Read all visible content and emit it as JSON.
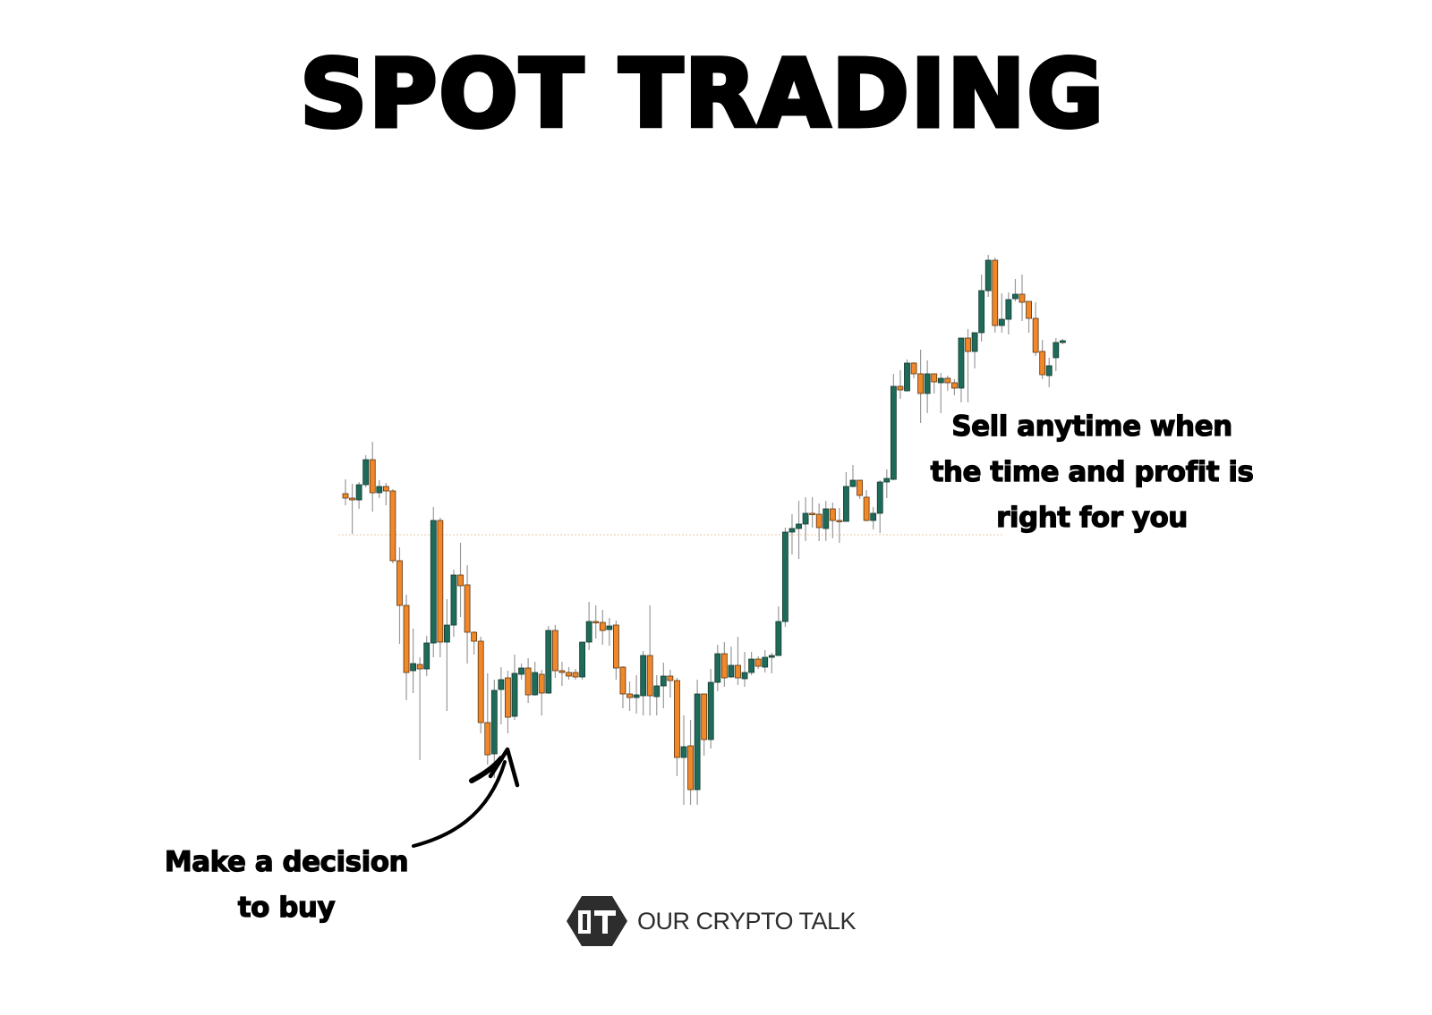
{
  "title": "SPOT TRADING",
  "annotations": {
    "sell": [
      "Sell anytime when",
      "the time and profit is",
      "right for you"
    ],
    "buy": [
      "Make a decision",
      "to buy"
    ]
  },
  "logo": {
    "text": "OUR CRYPTO TALK",
    "icon": "our-crypto-talk-hexagon-logo"
  },
  "colors": {
    "bullish": "#1f6b5a",
    "bearish": "#f0882a",
    "wick": "#9a9a9a",
    "reference_line": "#e8c9a0",
    "text": "#000000"
  },
  "chart_data": {
    "type": "candlestick",
    "title": "",
    "xlabel": "",
    "ylabel": "",
    "axes_visible": false,
    "grid": false,
    "reference_line": {
      "style": "dotted",
      "price": 402
    },
    "candle_fields": [
      "open",
      "high",
      "low",
      "close"
    ],
    "candles": [
      [
        448,
        464,
        435,
        443
      ],
      [
        443,
        459,
        403,
        441
      ],
      [
        441,
        461,
        431,
        458
      ],
      [
        458,
        491,
        455,
        486
      ],
      [
        486,
        506,
        428,
        449
      ],
      [
        449,
        463,
        443,
        456
      ],
      [
        456,
        460,
        435,
        451
      ],
      [
        451,
        453,
        370,
        373
      ],
      [
        373,
        388,
        280,
        323
      ],
      [
        323,
        335,
        217,
        248
      ],
      [
        250,
        297,
        225,
        258
      ],
      [
        257,
        265,
        150,
        252
      ],
      [
        252,
        289,
        244,
        281
      ],
      [
        281,
        433,
        265,
        418
      ],
      [
        418,
        421,
        265,
        282
      ],
      [
        282,
        330,
        205,
        301
      ],
      [
        301,
        363,
        288,
        357
      ],
      [
        357,
        393,
        310,
        345
      ],
      [
        346,
        368,
        258,
        293
      ],
      [
        293,
        294,
        268,
        283
      ],
      [
        283,
        288,
        180,
        192
      ],
      [
        192,
        247,
        145,
        156
      ],
      [
        157,
        240,
        130,
        228
      ],
      [
        229,
        254,
        190,
        240
      ],
      [
        242,
        250,
        180,
        198
      ],
      [
        199,
        268,
        195,
        247
      ],
      [
        246,
        258,
        240,
        253
      ],
      [
        253,
        264,
        214,
        223
      ],
      [
        223,
        260,
        222,
        248
      ],
      [
        246,
        251,
        200,
        225
      ],
      [
        225,
        300,
        224,
        295
      ],
      [
        295,
        301,
        242,
        250
      ],
      [
        250,
        260,
        233,
        248
      ],
      [
        248,
        254,
        240,
        244
      ],
      [
        248,
        252,
        240,
        243
      ],
      [
        243,
        282,
        240,
        282
      ],
      [
        282,
        327,
        273,
        305
      ],
      [
        305,
        323,
        286,
        304
      ],
      [
        304,
        318,
        279,
        295
      ],
      [
        296,
        309,
        278,
        300
      ],
      [
        301,
        306,
        240,
        253
      ],
      [
        254,
        255,
        208,
        224
      ],
      [
        224,
        238,
        205,
        220
      ],
      [
        220,
        245,
        202,
        223
      ],
      [
        222,
        272,
        200,
        267
      ],
      [
        267,
        323,
        200,
        222
      ],
      [
        221,
        245,
        200,
        233
      ],
      [
        233,
        259,
        208,
        244
      ],
      [
        244,
        251,
        220,
        239
      ],
      [
        239,
        242,
        132,
        153
      ],
      [
        153,
        200,
        100,
        165
      ],
      [
        166,
        195,
        100,
        117
      ],
      [
        117,
        240,
        100,
        224
      ],
      [
        224,
        224,
        155,
        173
      ],
      [
        173,
        252,
        163,
        237
      ],
      [
        237,
        279,
        227,
        269
      ],
      [
        269,
        282,
        232,
        242
      ],
      [
        243,
        277,
        242,
        256
      ],
      [
        256,
        288,
        234,
        242
      ],
      [
        241,
        271,
        232,
        248
      ],
      [
        248,
        271,
        245,
        263
      ],
      [
        263,
        266,
        252,
        255
      ],
      [
        254,
        273,
        248,
        265
      ],
      [
        265,
        270,
        247,
        267
      ],
      [
        267,
        322,
        267,
        305
      ],
      [
        305,
        410,
        299,
        405
      ],
      [
        405,
        425,
        380,
        409
      ],
      [
        409,
        440,
        375,
        414
      ],
      [
        414,
        444,
        395,
        426
      ],
      [
        426,
        444,
        410,
        425
      ],
      [
        425,
        437,
        395,
        410
      ],
      [
        409,
        440,
        395,
        431
      ],
      [
        431,
        438,
        398,
        418
      ],
      [
        418,
        432,
        393,
        417
      ],
      [
        417,
        472,
        417,
        456
      ],
      [
        456,
        480,
        455,
        463
      ],
      [
        463,
        463,
        442,
        446
      ],
      [
        444,
        452,
        417,
        418
      ],
      [
        418,
        433,
        408,
        426
      ],
      [
        426,
        463,
        404,
        461
      ],
      [
        461,
        475,
        443,
        465
      ],
      [
        464,
        582,
        463,
        568
      ],
      [
        568,
        586,
        554,
        564
      ],
      [
        563,
        598,
        562,
        594
      ],
      [
        594,
        595,
        577,
        582
      ],
      [
        582,
        609,
        527,
        560
      ],
      [
        560,
        597,
        538,
        582
      ],
      [
        582,
        582,
        560,
        573
      ],
      [
        572,
        583,
        538,
        577
      ],
      [
        577,
        580,
        563,
        572
      ],
      [
        572,
        576,
        558,
        566
      ],
      [
        566,
        622,
        550,
        622
      ],
      [
        622,
        632,
        550,
        607
      ],
      [
        607,
        628,
        588,
        628
      ],
      [
        628,
        693,
        618,
        675
      ],
      [
        675,
        715,
        668,
        709
      ],
      [
        709,
        712,
        628,
        636
      ],
      [
        636,
        672,
        628,
        643
      ],
      [
        643,
        673,
        626,
        665
      ],
      [
        666,
        688,
        663,
        671
      ],
      [
        671,
        693,
        641,
        662
      ],
      [
        663,
        663,
        628,
        644
      ],
      [
        644,
        662,
        602,
        606
      ],
      [
        607,
        620,
        576,
        581
      ],
      [
        580,
        600,
        567,
        591
      ],
      [
        600,
        622,
        585,
        617
      ],
      [
        617,
        621,
        615,
        619
      ]
    ]
  }
}
